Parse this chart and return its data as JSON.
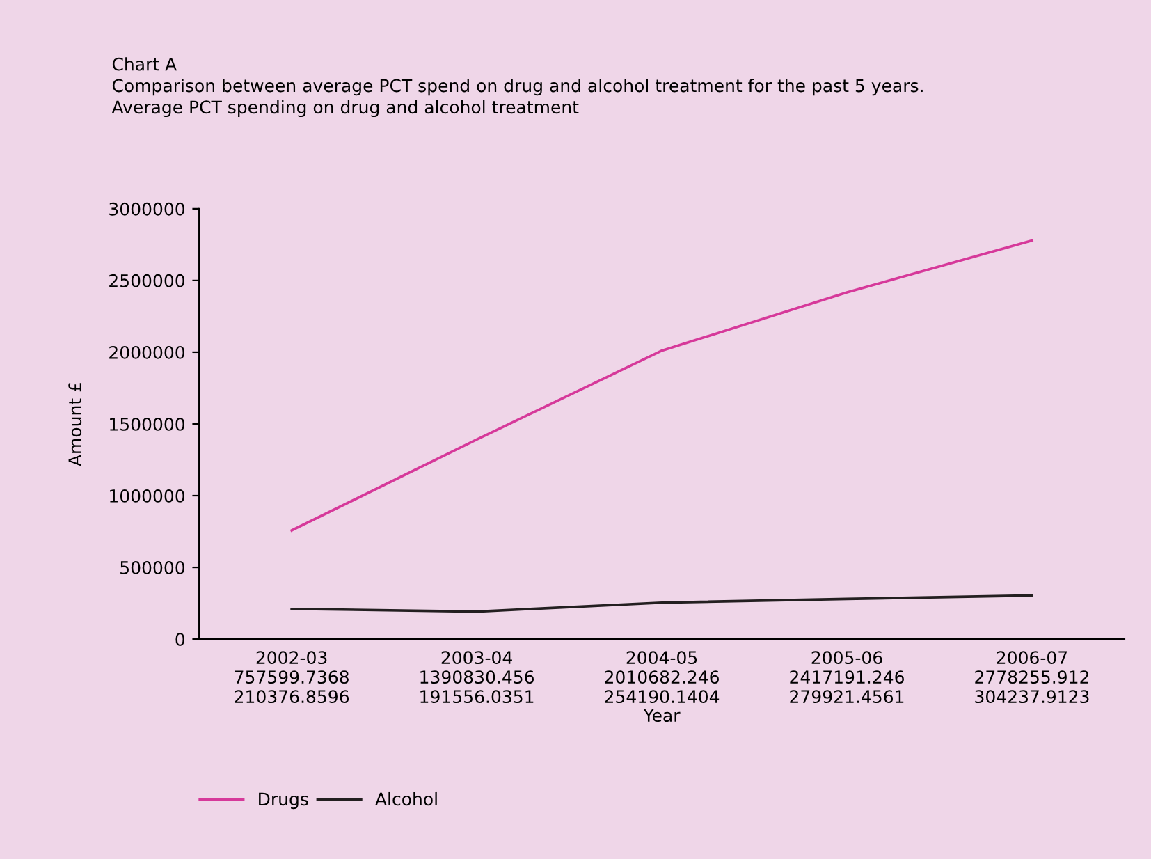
{
  "chart_data": {
    "type": "line",
    "title": "Chart A",
    "subtitle": "Comparison between average PCT spend on drug and alcohol treatment for the past 5 years.",
    "annotations": [
      "Average PCT spending on drug and alcohol treatment"
    ],
    "xlabel": "Year",
    "ylabel": "Amount £",
    "categories": [
      "2002-03",
      "2003-04",
      "2004-05",
      "2005-06",
      "2006-07"
    ],
    "series": [
      {
        "name": "Drugs",
        "color": "#d6399a",
        "values": [
          757599.7368,
          1390830.456,
          2010682.246,
          2417191.246,
          2778255.912
        ]
      },
      {
        "name": "Alcohol",
        "color": "#231f20",
        "values": [
          210376.8596,
          191556.0351,
          254190.1404,
          279921.4561,
          304237.9123
        ]
      }
    ],
    "ylim": [
      0,
      3000000
    ],
    "yticks": [
      0,
      500000,
      1000000,
      1500000,
      2000000,
      2500000,
      3000000
    ],
    "data_labels": true,
    "legend": "bottom left",
    "grid": false,
    "marker": "none",
    "line_style": "solid"
  }
}
